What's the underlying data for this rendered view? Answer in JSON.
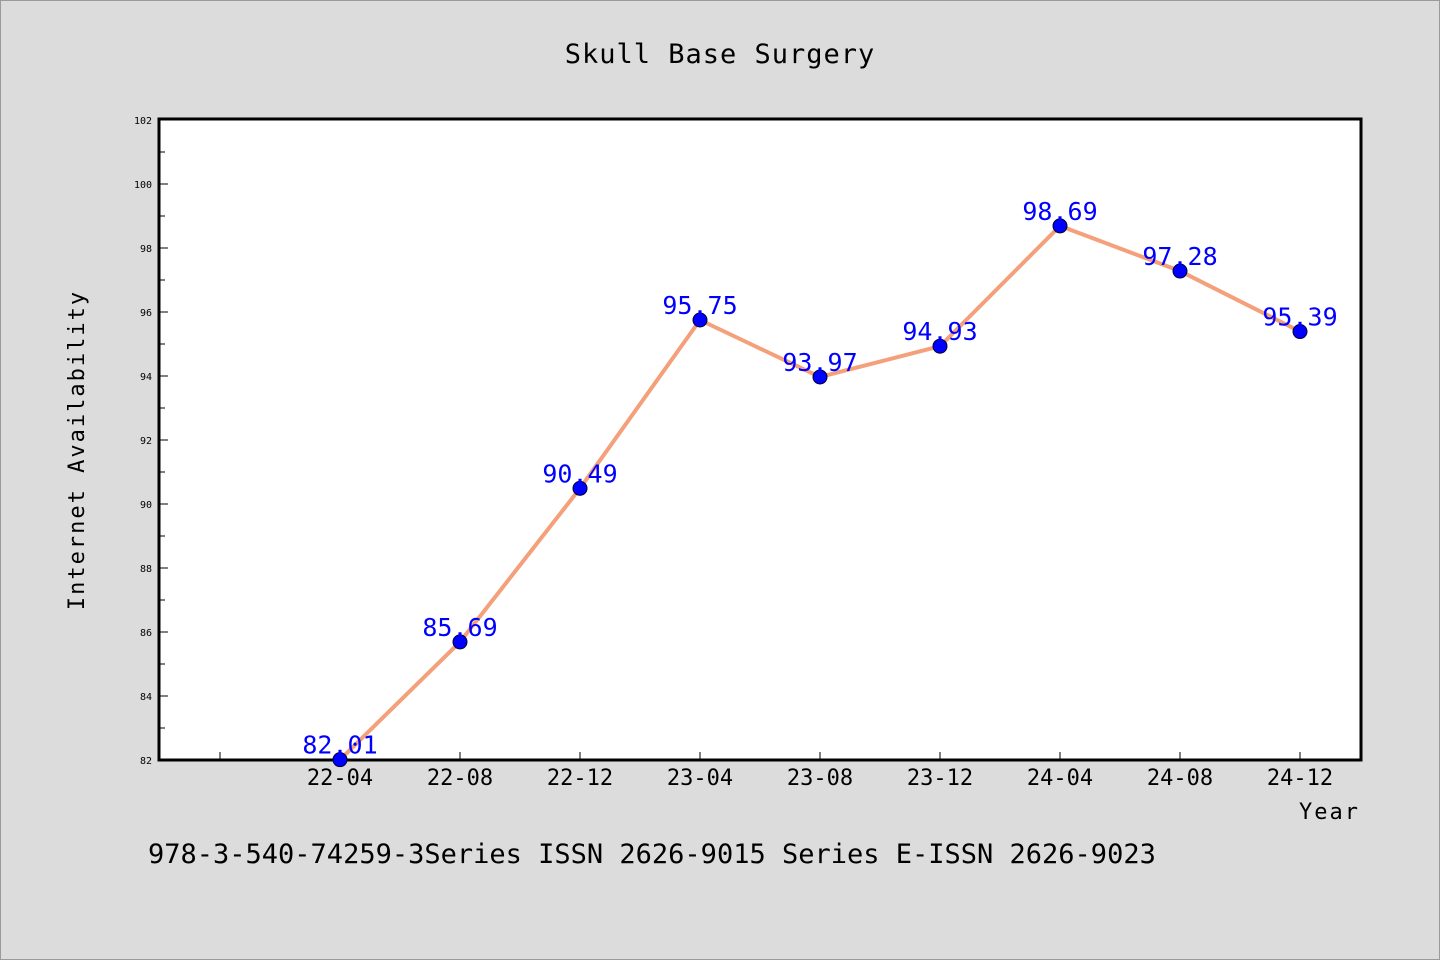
{
  "chart_data": {
    "type": "line",
    "title": "Skull Base Surgery",
    "xlabel": "Year",
    "ylabel": "Internet Availability",
    "categories": [
      "22-04",
      "22-08",
      "22-12",
      "23-04",
      "23-08",
      "23-12",
      "24-04",
      "24-08",
      "24-12"
    ],
    "series": [
      {
        "values": [
          82.01,
          85.69,
          90.49,
          95.75,
          93.97,
          94.93,
          98.69,
          97.28,
          95.39
        ],
        "line_color": "#f4a07a",
        "marker_color": "#0000ff"
      }
    ],
    "data_labels": [
      "82.01",
      "85.69",
      "90.49",
      "95.75",
      "93.97",
      "94.93",
      "98.69",
      "97.28",
      "95.39"
    ],
    "ylim": [
      82,
      102
    ],
    "y_ticks": [
      "82",
      "84",
      "86",
      "88",
      "90",
      "92",
      "94",
      "96",
      "98",
      "100",
      "102"
    ],
    "grid": false,
    "legend": "none",
    "footer": "978-3-540-74259-3Series ISSN 2626-9015 Series E-ISSN 2626-9023"
  },
  "colors": {
    "background": "#dcdcdc",
    "plot_background": "#ffffff",
    "line": "#f4a07a",
    "marker": "#0000ff",
    "data_label": "#0000ff"
  }
}
